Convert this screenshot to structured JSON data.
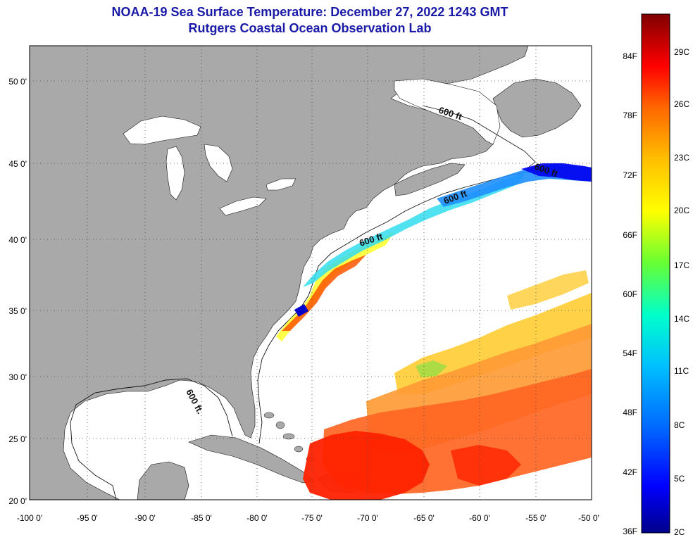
{
  "title": {
    "line1": "NOAA-19 Sea Surface Temperature:  December 27, 2022 1243 GMT",
    "line2": "Rutgers Coastal Ocean Observation Lab"
  },
  "map": {
    "lon_range": [
      -100,
      -50
    ],
    "lat_range": [
      20,
      52.5
    ],
    "lon_ticks": [
      "-100 0'",
      "-95 0'",
      "-90 0'",
      "-85 0'",
      "-80 0'",
      "-75 0'",
      "-70 0'",
      "-65 0'",
      "-60 0'",
      "-55 0'",
      "-50 0'"
    ],
    "lat_ticks": [
      "20 0'",
      "25 0'",
      "30 0'",
      "35 0'",
      "40 0'",
      "45 0'",
      "50 0'"
    ],
    "contour_labels": [
      "600 ft",
      "600 ft",
      "600 ft",
      "600 ft",
      "600 ft."
    ],
    "colors": {
      "land": "#a9a9a9",
      "water": "#ffffff",
      "grid": "#444444"
    }
  },
  "colorbar": {
    "fahrenheit_labels": [
      "84F",
      "78F",
      "72F",
      "66F",
      "60F",
      "54F",
      "48F",
      "42F",
      "36F"
    ],
    "celsius_labels": [
      "29C",
      "26C",
      "23C",
      "20C",
      "17C",
      "14C",
      "11C",
      "8C",
      "5C",
      "2C"
    ],
    "range_c": [
      2,
      31
    ],
    "colors": [
      "#00008b",
      "#0000ff",
      "#0066ff",
      "#00bfff",
      "#00ffcc",
      "#66ff33",
      "#ffff00",
      "#ffbf00",
      "#ff6600",
      "#ff0000",
      "#b30000",
      "#800000"
    ]
  }
}
